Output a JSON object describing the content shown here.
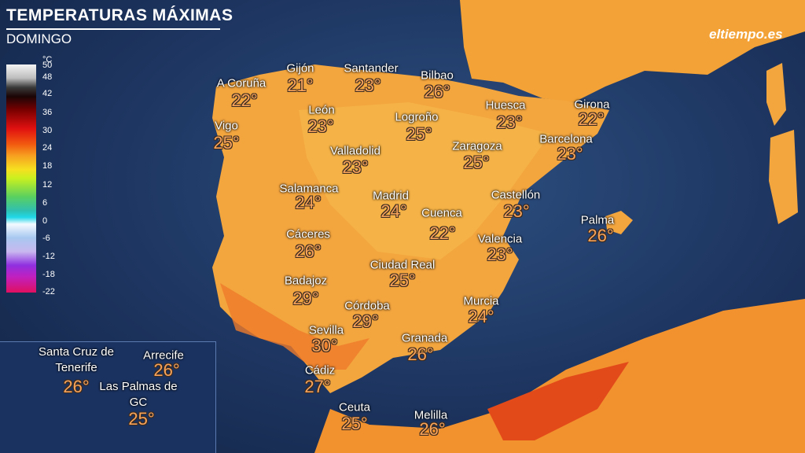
{
  "header": {
    "title": "TEMPERATURAS MÁXIMAS",
    "subtitle": "DOMINGO",
    "logo": "eltiempo.es"
  },
  "legend": {
    "unit": "°C",
    "ticks": [
      50,
      48,
      42,
      36,
      30,
      24,
      18,
      12,
      6,
      0,
      -6,
      -12,
      -18,
      -22
    ]
  },
  "cities": [
    {
      "name": "A Coruña",
      "temp": "22°"
    },
    {
      "name": "Gijón",
      "temp": "21°"
    },
    {
      "name": "Santander",
      "temp": "23°"
    },
    {
      "name": "Bilbao",
      "temp": "26°"
    },
    {
      "name": "Vigo",
      "temp": "25°"
    },
    {
      "name": "León",
      "temp": "23°"
    },
    {
      "name": "Logroño",
      "temp": "25°"
    },
    {
      "name": "Huesca",
      "temp": "23°"
    },
    {
      "name": "Girona",
      "temp": "22°"
    },
    {
      "name": "Barcelona",
      "temp": "23°"
    },
    {
      "name": "Valladolid",
      "temp": "23°"
    },
    {
      "name": "Zaragoza",
      "temp": "25°"
    },
    {
      "name": "Salamanca",
      "temp": "24°"
    },
    {
      "name": "Madrid",
      "temp": "24°"
    },
    {
      "name": "Cuenca",
      "temp": "22°"
    },
    {
      "name": "Castellón",
      "temp": "23°"
    },
    {
      "name": "Palma",
      "temp": "26°"
    },
    {
      "name": "Cáceres",
      "temp": "26°"
    },
    {
      "name": "Valencia",
      "temp": "23°"
    },
    {
      "name": "Ciudad Real",
      "temp": "25°"
    },
    {
      "name": "Badajoz",
      "temp": "29°"
    },
    {
      "name": "Córdoba",
      "temp": "29°"
    },
    {
      "name": "Murcia",
      "temp": "24°"
    },
    {
      "name": "Sevilla",
      "temp": "30°"
    },
    {
      "name": "Granada",
      "temp": "26°"
    },
    {
      "name": "Cádiz",
      "temp": "27°"
    },
    {
      "name": "Ceuta",
      "temp": "25°"
    },
    {
      "name": "Melilla",
      "temp": "26°"
    }
  ],
  "canary": [
    {
      "name": "Santa Cruz de Tenerife",
      "temp": "26°"
    },
    {
      "name": "Arrecife",
      "temp": "26°"
    },
    {
      "name": "Las Palmas de GC",
      "temp": "25°"
    }
  ]
}
